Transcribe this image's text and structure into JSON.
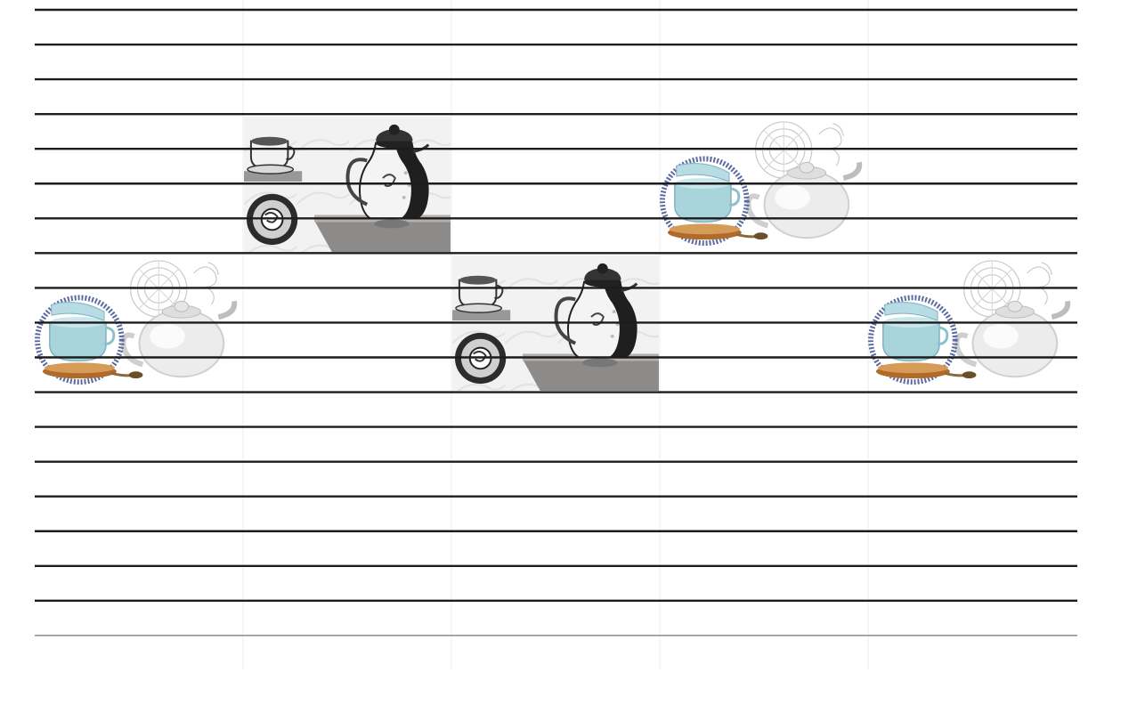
{
  "tile_grid": {
    "columns": 5,
    "rows": 5,
    "stripes": 19,
    "colors": {
      "background": "#ffffff",
      "stripe": "#1c1c1c",
      "bottom_stripe": "#8a8a8a",
      "grout": "#eeeeee"
    }
  },
  "decor_tiles": [
    {
      "motif": "coffee-pot-set-icon",
      "tone": "monochrome",
      "column": 2,
      "row": 2
    },
    {
      "motif": "teapot-and-cups-icon",
      "tone": "light-blue",
      "column": 4,
      "row": 2
    },
    {
      "motif": "teapot-and-cups-icon",
      "tone": "light-blue",
      "column": 1,
      "row": 3
    },
    {
      "motif": "coffee-pot-set-icon",
      "tone": "monochrome",
      "column": 3,
      "row": 3
    },
    {
      "motif": "teapot-and-cups-icon",
      "tone": "light-blue",
      "column": 5,
      "row": 3
    }
  ]
}
